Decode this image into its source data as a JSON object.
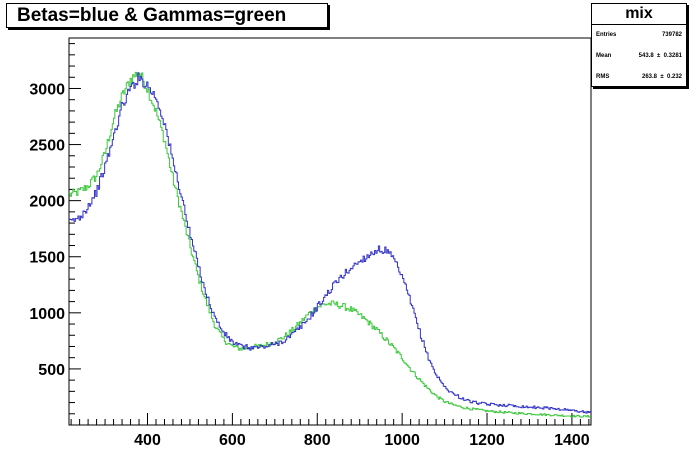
{
  "title": "Betas=blue & Gammas=green",
  "stats": {
    "name": "mix",
    "entries_label": "Entries",
    "entries_value": "739782",
    "mean_label": "Mean",
    "mean_value": "543.8  ±  0.3281",
    "rms_label": "RMS",
    "rms_value": "263.8  ±  0.232"
  },
  "chart_data": {
    "type": "line",
    "title": "Betas=blue & Gammas=green",
    "xlabel": "",
    "ylabel": "",
    "xlim": [
      215,
      1445
    ],
    "ylim": [
      0,
      3450
    ],
    "x_ticks": [
      400,
      600,
      800,
      1000,
      1200,
      1400
    ],
    "y_ticks": [
      500,
      1000,
      1500,
      2000,
      2500,
      3000
    ],
    "grid": false,
    "colors": {
      "blue": "#3232c8",
      "green": "#3cc83c"
    },
    "series": [
      {
        "color": "blue",
        "x": [
          215,
          240,
          260,
          280,
          300,
          320,
          340,
          360,
          380,
          400,
          420,
          440,
          460,
          480,
          500,
          520,
          540,
          560,
          580,
          600,
          620,
          640,
          660,
          680,
          700,
          720,
          740,
          760,
          780,
          800,
          820,
          840,
          860,
          880,
          900,
          920,
          940,
          960,
          980,
          1000,
          1020,
          1040,
          1060,
          1080,
          1100,
          1120,
          1140,
          1160,
          1180,
          1200,
          1250,
          1300,
          1350,
          1400,
          1445
        ],
        "values": [
          1800,
          1850,
          1950,
          2080,
          2300,
          2560,
          2840,
          3000,
          3100,
          3030,
          2920,
          2700,
          2350,
          2050,
          1700,
          1420,
          1150,
          950,
          820,
          740,
          700,
          690,
          690,
          700,
          720,
          750,
          800,
          870,
          950,
          1050,
          1150,
          1250,
          1330,
          1400,
          1460,
          1510,
          1560,
          1560,
          1480,
          1320,
          1100,
          850,
          620,
          450,
          340,
          280,
          240,
          210,
          195,
          185,
          175,
          160,
          150,
          130,
          110
        ]
      },
      {
        "color": "green",
        "x": [
          215,
          240,
          260,
          280,
          300,
          320,
          340,
          360,
          380,
          400,
          420,
          440,
          460,
          480,
          500,
          520,
          540,
          560,
          580,
          600,
          620,
          640,
          660,
          680,
          700,
          720,
          740,
          760,
          780,
          800,
          820,
          840,
          860,
          880,
          900,
          920,
          940,
          960,
          980,
          1000,
          1020,
          1040,
          1060,
          1080,
          1100,
          1120,
          1140,
          1160,
          1180,
          1200,
          1250,
          1300,
          1350,
          1400,
          1445
        ],
        "values": [
          2050,
          2080,
          2130,
          2220,
          2420,
          2720,
          2930,
          3080,
          3150,
          3000,
          2800,
          2550,
          2200,
          1900,
          1600,
          1320,
          1080,
          880,
          760,
          700,
          680,
          690,
          700,
          715,
          740,
          780,
          840,
          910,
          990,
          1050,
          1080,
          1080,
          1060,
          1030,
          980,
          920,
          850,
          770,
          690,
          600,
          500,
          410,
          330,
          260,
          210,
          180,
          160,
          145,
          135,
          125,
          110,
          100,
          90,
          80,
          75
        ]
      }
    ]
  }
}
